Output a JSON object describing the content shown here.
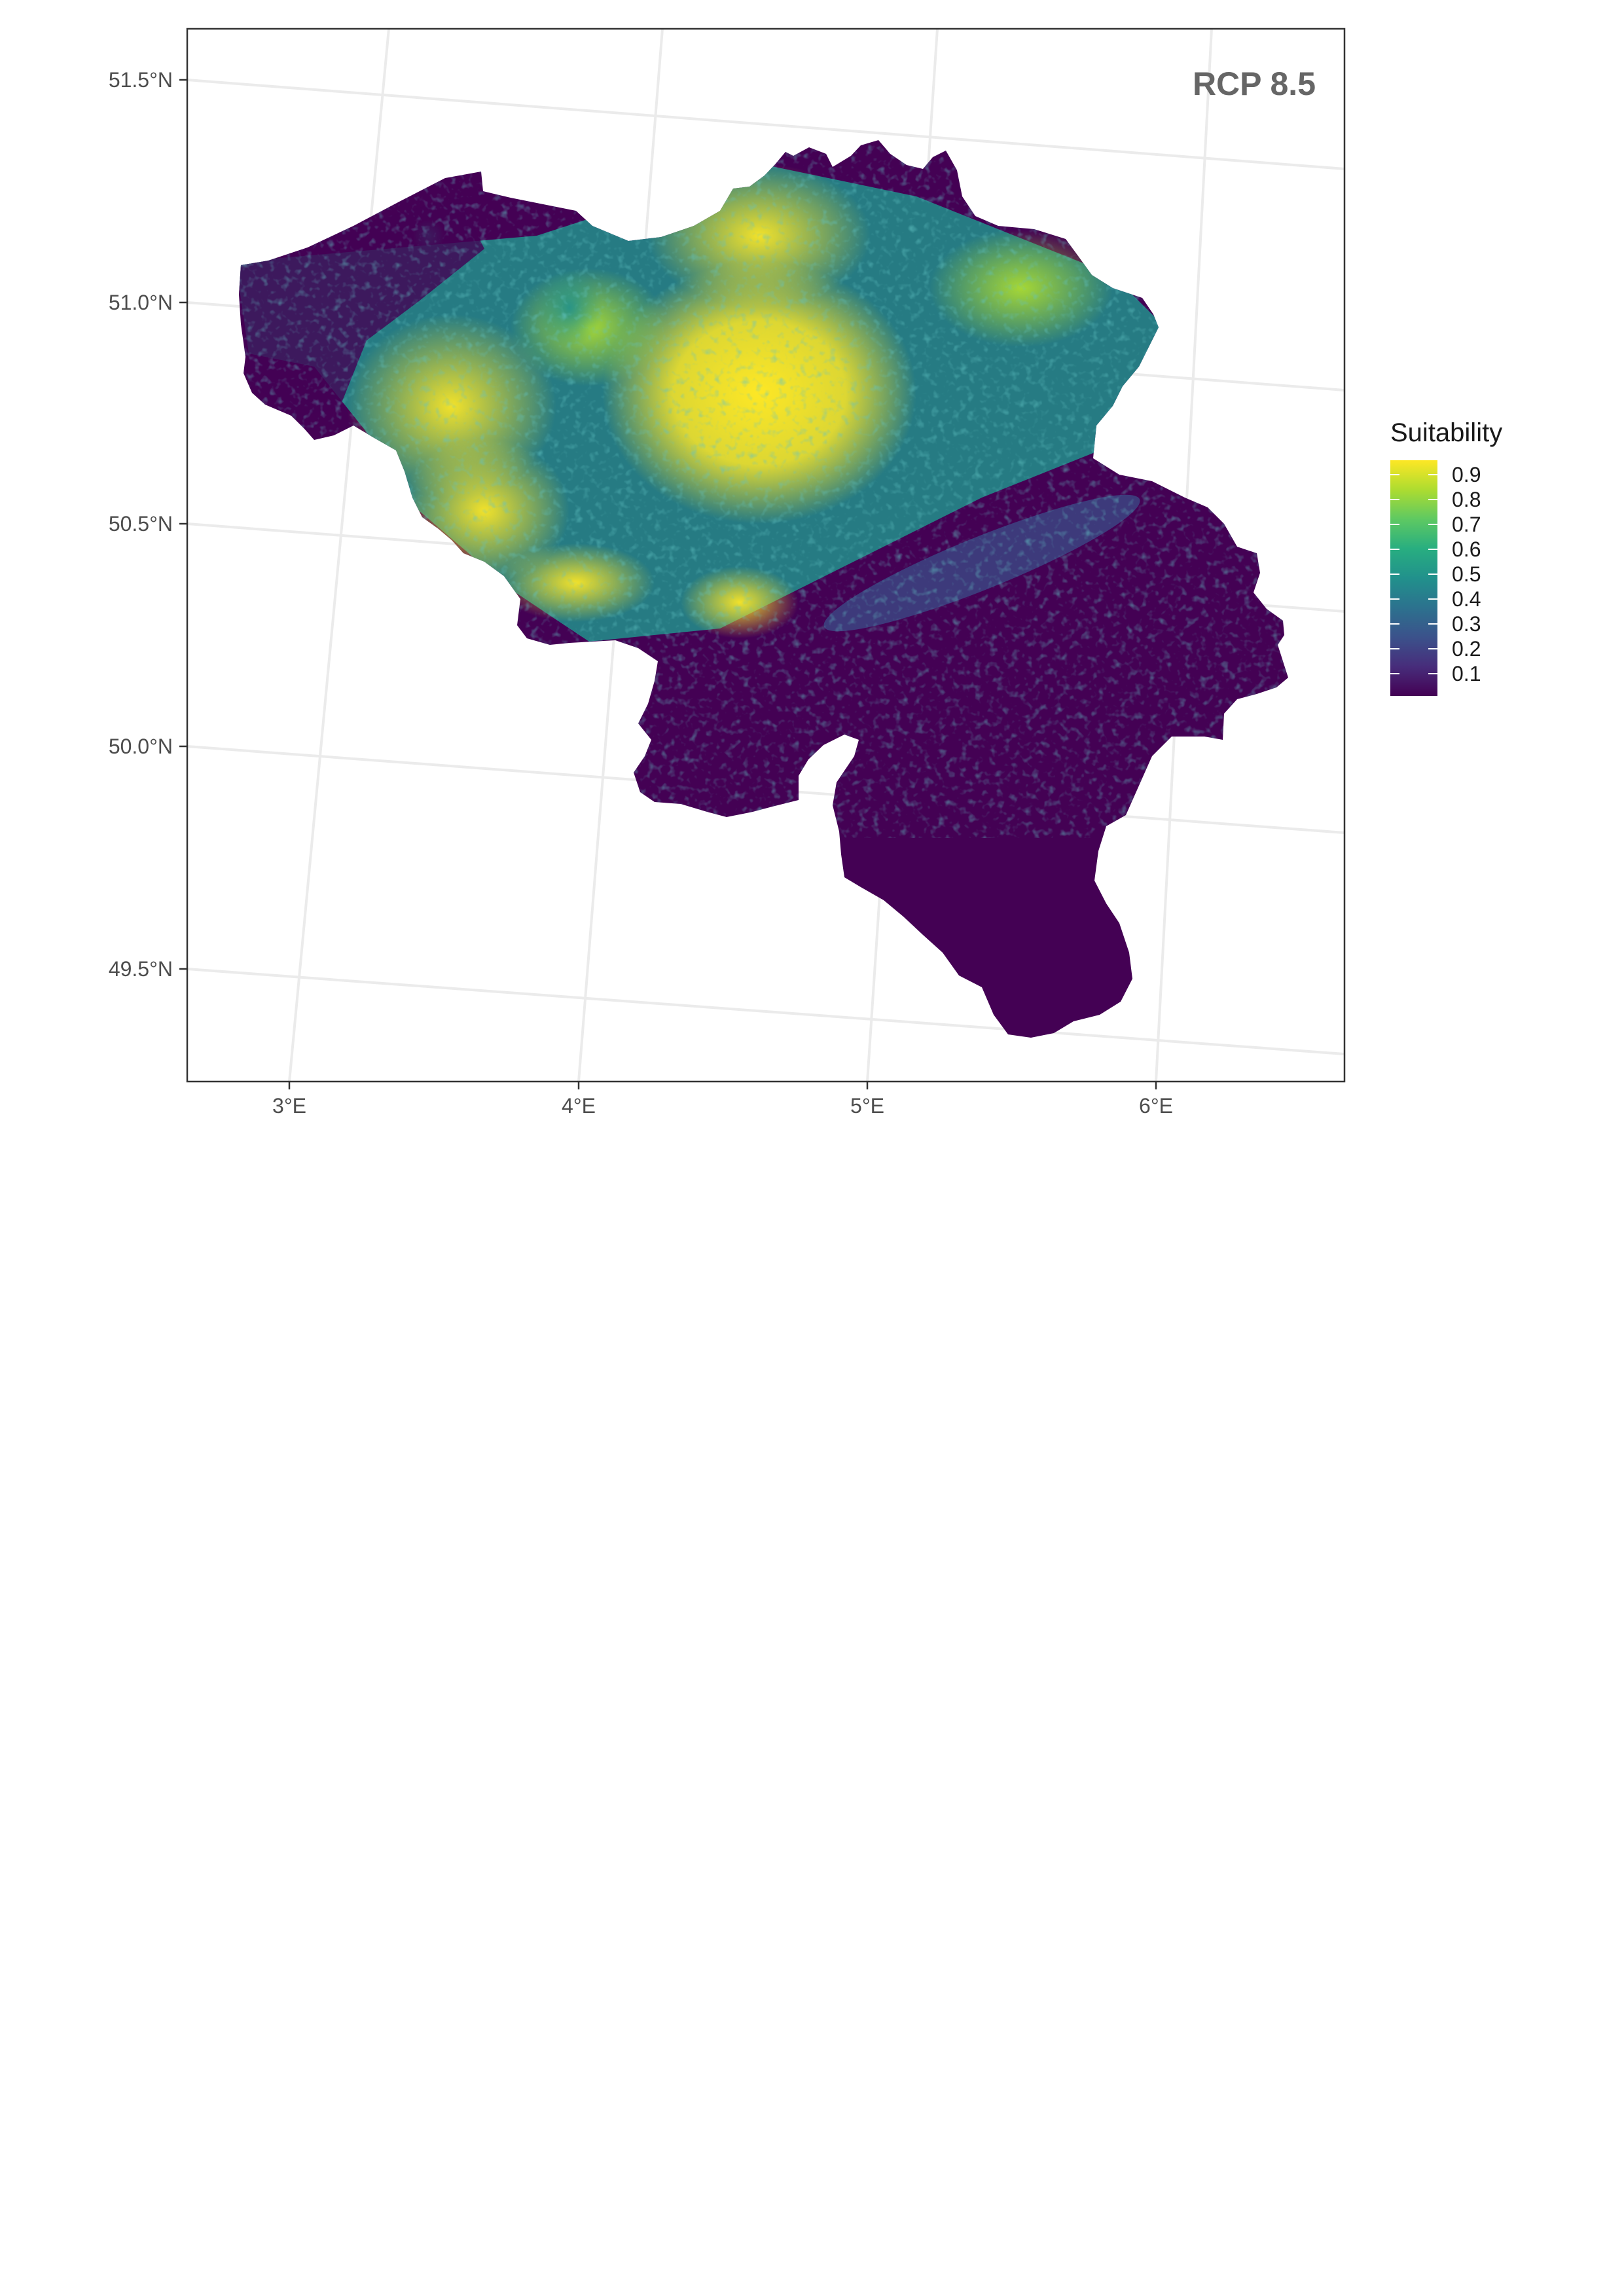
{
  "map": {
    "scenario_label": "RCP 8.5",
    "latitude_labels": [
      "51.5°N",
      "51.0°N",
      "50.5°N",
      "50.0°N",
      "49.5°N"
    ],
    "longitude_labels": [
      "3°E",
      "4°E",
      "5°E",
      "6°E"
    ],
    "legend": {
      "title": "Suitability",
      "labels": [
        "0.9",
        "0.8",
        "0.7",
        "0.6",
        "0.5",
        "0.4",
        "0.3",
        "0.2",
        "0.1"
      ],
      "colors": [
        "#440154",
        "#472d7b",
        "#3b528b",
        "#2c728e",
        "#21918c",
        "#28ae80",
        "#5ec962",
        "#addc30",
        "#fde725"
      ]
    },
    "suitability_colors": {
      "low": "#440154",
      "low_mid": "#3b528b",
      "mid": "#21918c",
      "mid_high": "#5ec962",
      "high": "#fde725"
    }
  }
}
